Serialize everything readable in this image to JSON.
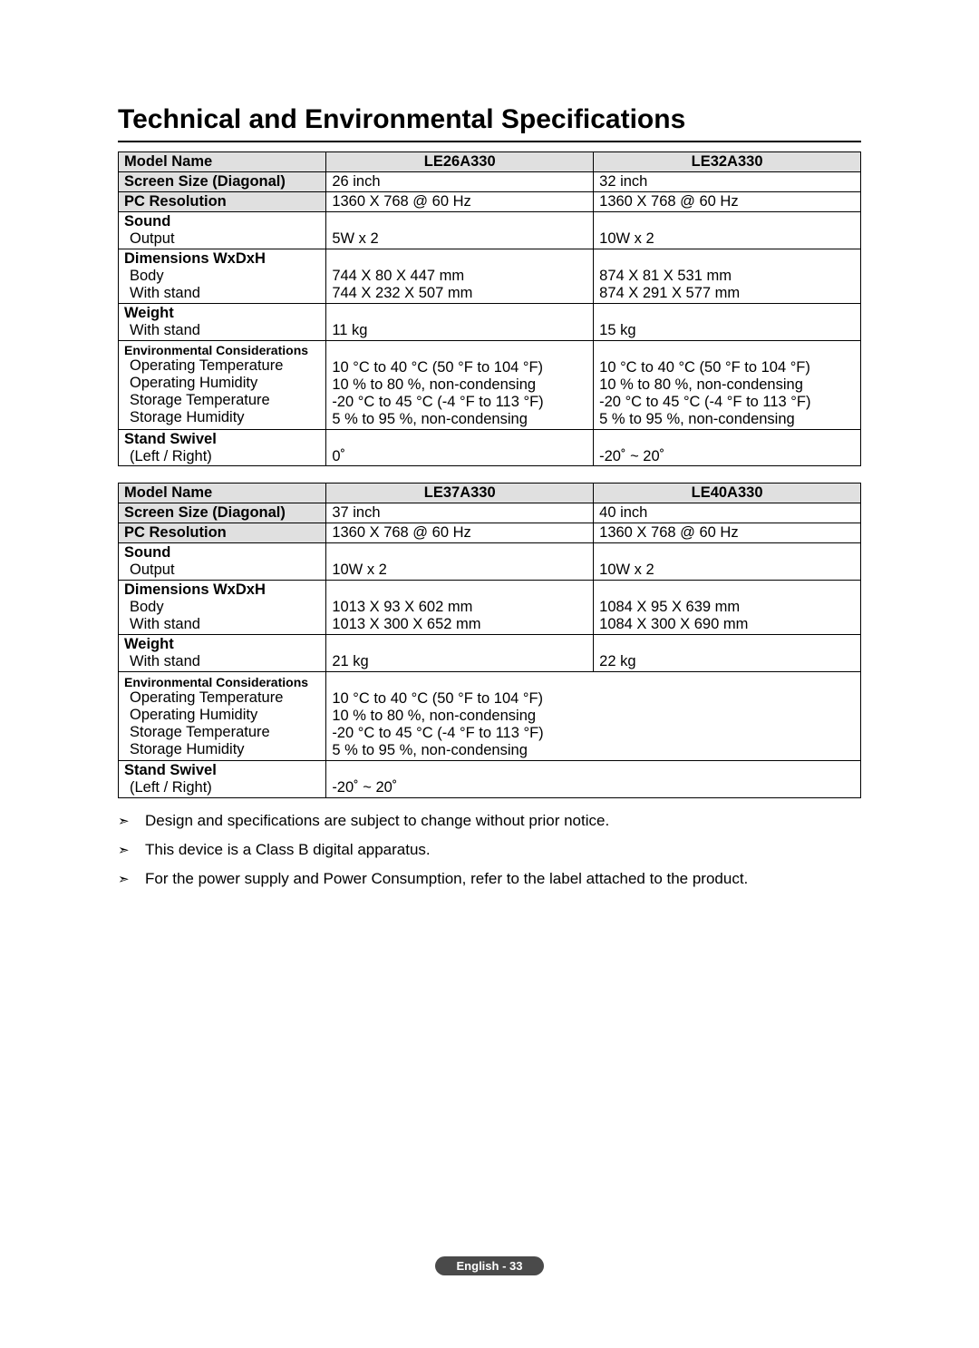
{
  "title": "Technical and Environmental Specifications",
  "table1": {
    "header": {
      "c0": "Model Name",
      "c1": "LE26A330",
      "c2": "LE32A330"
    },
    "screenSize": {
      "label": "Screen Size (Diagonal)",
      "c1": "26 inch",
      "c2": "32 inch"
    },
    "pcRes": {
      "label": "PC Resolution",
      "c1": "1360 X 768 @ 60 Hz",
      "c2": "1360 X 768 @ 60 Hz"
    },
    "sound": {
      "label": "Sound",
      "outputLabel": "Output",
      "c1": "5W x 2",
      "c2": "10W x 2"
    },
    "dims": {
      "label": "Dimensions WxDxH",
      "bodyLabel": "Body",
      "bodyC1": "744 X 80 X 447 mm",
      "bodyC2": "874 X 81 X 531 mm",
      "standLabel": "With stand",
      "standC1": "744 X 232 X 507 mm",
      "standC2": "874 X 291 X 577 mm"
    },
    "weight": {
      "label": "Weight",
      "standLabel": "With stand",
      "c1": "11 kg",
      "c2": "15 kg"
    },
    "env": {
      "label": "Environmental Considerations",
      "opTempLabel": "Operating Temperature",
      "opTempC1": "10 °C to 40 °C (50 °F to 104 °F)",
      "opTempC2": "10 °C to 40 °C (50 °F to 104 °F)",
      "opHumLabel": "Operating Humidity",
      "opHumC1": "10 % to 80 %, non-condensing",
      "opHumC2": "10 % to 80 %, non-condensing",
      "stTempLabel": "Storage Temperature",
      "stTempC1": "-20 °C to 45 °C (-4 °F to 113 °F)",
      "stTempC2": "-20 °C to 45 °C (-4 °F to 113 °F)",
      "stHumLabel": "Storage Humidity",
      "stHumC1": "5 % to 95 %, non-condensing",
      "stHumC2": "5 % to 95 %, non-condensing"
    },
    "swivel": {
      "label": "Stand Swivel",
      "lrLabel": "(Left / Right)",
      "c1": "0˚",
      "c2": "-20˚ ~ 20˚"
    }
  },
  "table2": {
    "header": {
      "c0": "Model Name",
      "c1": "LE37A330",
      "c2": "LE40A330"
    },
    "screenSize": {
      "label": "Screen Size (Diagonal)",
      "c1": "37 inch",
      "c2": "40 inch"
    },
    "pcRes": {
      "label": "PC Resolution",
      "c1": "1360 X 768 @ 60 Hz",
      "c2": "1360 X 768 @ 60 Hz"
    },
    "sound": {
      "label": "Sound",
      "outputLabel": "Output",
      "c1": "10W x 2",
      "c2": "10W x 2"
    },
    "dims": {
      "label": "Dimensions WxDxH",
      "bodyLabel": "Body",
      "bodyC1": "1013 X 93 X 602 mm",
      "bodyC2": "1084 X 95 X 639 mm",
      "standLabel": "With stand",
      "standC1": "1013 X 300 X 652 mm",
      "standC2": "1084 X 300 X 690 mm"
    },
    "weight": {
      "label": "Weight",
      "standLabel": "With stand",
      "c1": "21 kg",
      "c2": "22 kg"
    },
    "env": {
      "label": "Environmental Considerations",
      "opTempLabel": "Operating Temperature",
      "opTemp": "10 °C to 40 °C (50 °F to 104 °F)",
      "opHumLabel": "Operating Humidity",
      "opHum": "10 % to 80 %, non-condensing",
      "stTempLabel": "Storage Temperature",
      "stTemp": "-20 °C to 45 °C (-4 °F to 113 °F)",
      "stHumLabel": "Storage Humidity",
      "stHum": "5 % to 95 %, non-condensing"
    },
    "swivel": {
      "label": "Stand Swivel",
      "lrLabel": "(Left / Right)",
      "val": "-20˚ ~ 20˚"
    }
  },
  "notes": {
    "n1": "Design and specifications are subject to change without prior notice.",
    "n2": "This device is a Class B digital apparatus.",
    "n3": "For the power supply and Power Consumption, refer to the label attached to the product."
  },
  "footer": "English - 33"
}
